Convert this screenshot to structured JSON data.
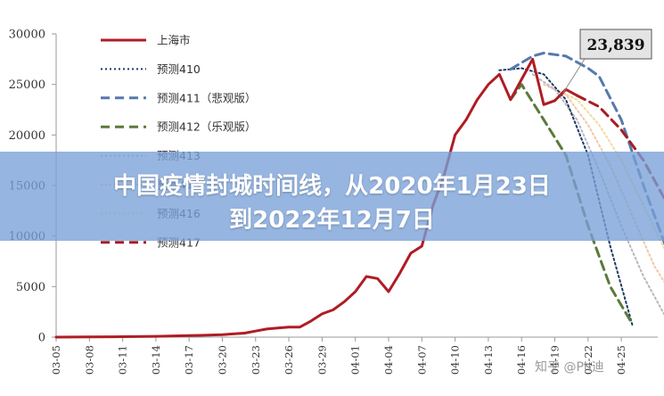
{
  "banner": {
    "line1": "中国疫情封城时间线，从2020年1月23日",
    "line2": "到2022年12月7日"
  },
  "callout": {
    "text": "23,839"
  },
  "watermark": {
    "text": "知乎 @Ph迪"
  },
  "chart_data": {
    "type": "line",
    "title": "",
    "xlabel": "",
    "ylabel": "",
    "ylim": [
      0,
      30000
    ],
    "yticks": [
      0,
      5000,
      10000,
      15000,
      20000,
      25000,
      30000
    ],
    "xticks": [
      "03-05",
      "03-08",
      "03-11",
      "03-14",
      "03-17",
      "03-20",
      "03-23",
      "03-26",
      "03-29",
      "04-01",
      "04-04",
      "04-07",
      "04-10",
      "04-13",
      "04-16",
      "04-19",
      "04-22",
      "04-25"
    ],
    "x_range_days": [
      0,
      51
    ],
    "grid": false,
    "legend_position": "top-left",
    "series": [
      {
        "name": "上海市",
        "color": "#b01c24",
        "style": "solid",
        "width": 3,
        "points": [
          [
            0,
            0
          ],
          [
            3,
            20
          ],
          [
            6,
            40
          ],
          [
            9,
            80
          ],
          [
            12,
            150
          ],
          [
            13,
            180
          ],
          [
            15,
            250
          ],
          [
            17,
            400
          ],
          [
            18,
            600
          ],
          [
            19,
            800
          ],
          [
            20,
            900
          ],
          [
            21,
            1000
          ],
          [
            22,
            1000
          ],
          [
            23,
            1600
          ],
          [
            24,
            2300
          ],
          [
            25,
            2700
          ],
          [
            26,
            3500
          ],
          [
            27,
            4500
          ],
          [
            28,
            6000
          ],
          [
            29,
            5800
          ],
          [
            30,
            4500
          ],
          [
            31,
            6300
          ],
          [
            32,
            8300
          ],
          [
            33,
            9000
          ],
          [
            34,
            13000
          ],
          [
            35,
            16000
          ],
          [
            36,
            20000
          ],
          [
            37,
            21500
          ],
          [
            38,
            23500
          ],
          [
            39,
            25000
          ],
          [
            40,
            26000
          ],
          [
            41,
            23500
          ],
          [
            42,
            25500
          ],
          [
            43,
            27500
          ],
          [
            44,
            23000
          ],
          [
            45,
            23400
          ],
          [
            46,
            24500
          ],
          [
            47,
            23900
          ]
        ]
      },
      {
        "name": "预测410",
        "color": "#1f3a66",
        "style": "dotted",
        "width": 2,
        "points": [
          [
            40,
            26400
          ],
          [
            42,
            26600
          ],
          [
            44,
            26000
          ],
          [
            46,
            23500
          ],
          [
            48,
            18000
          ],
          [
            50,
            9000
          ],
          [
            52,
            1200
          ]
        ]
      },
      {
        "name": "预测411（悲观版）",
        "color": "#5579ad",
        "style": "dashed",
        "width": 3,
        "points": [
          [
            41,
            26500
          ],
          [
            43,
            27800
          ],
          [
            44,
            28100
          ],
          [
            46,
            27800
          ],
          [
            48,
            26600
          ],
          [
            49,
            25800
          ],
          [
            51,
            21500
          ],
          [
            53,
            15000
          ],
          [
            55,
            9000
          ],
          [
            57,
            3500
          ]
        ]
      },
      {
        "name": "预测412（乐观版）",
        "color": "#5a7a3a",
        "style": "dashed",
        "width": 3,
        "points": [
          [
            41,
            23500
          ],
          [
            42,
            25000
          ],
          [
            44,
            21500
          ],
          [
            46,
            18000
          ],
          [
            48,
            11000
          ],
          [
            50,
            5000
          ],
          [
            52,
            1300
          ]
        ]
      },
      {
        "name": "预测413",
        "color": "#b8b8c0",
        "style": "dotted",
        "width": 2,
        "points": [
          [
            43,
            26000
          ],
          [
            45,
            24500
          ],
          [
            47,
            21500
          ],
          [
            49,
            16500
          ],
          [
            51,
            11000
          ],
          [
            53,
            6000
          ],
          [
            55,
            2000
          ]
        ]
      },
      {
        "name": "预测415",
        "color": "#f2c7a6",
        "style": "dotted",
        "width": 2,
        "points": [
          [
            44,
            25000
          ],
          [
            46,
            24000
          ],
          [
            48,
            21000
          ],
          [
            50,
            17000
          ],
          [
            52,
            12000
          ],
          [
            54,
            7000
          ],
          [
            56,
            3500
          ]
        ]
      },
      {
        "name": "预测416",
        "color": "#f0dd9a",
        "style": "dotted",
        "width": 2,
        "points": [
          [
            45,
            24500
          ],
          [
            47,
            23500
          ],
          [
            49,
            21000
          ],
          [
            51,
            17500
          ],
          [
            53,
            13000
          ],
          [
            55,
            8500
          ],
          [
            57,
            5000
          ]
        ]
      },
      {
        "name": "预测417",
        "color": "#a61d24",
        "style": "dashed",
        "width": 3,
        "points": [
          [
            47,
            23900
          ],
          [
            49,
            22800
          ],
          [
            51,
            20500
          ],
          [
            53,
            17500
          ],
          [
            55,
            13500
          ],
          [
            57,
            8500
          ],
          [
            58,
            4500
          ]
        ]
      }
    ]
  }
}
